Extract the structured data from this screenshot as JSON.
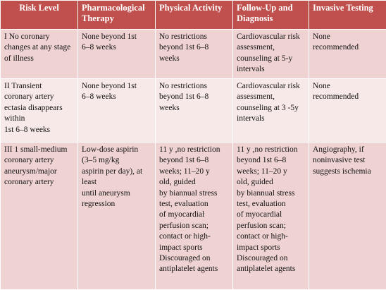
{
  "table": {
    "header": [
      "Risk Level",
      "Pharmacological\nTherapy",
      "Physical Activity",
      "Follow-Up and\nDiagnosis",
      "Invasive Testing"
    ],
    "rows": [
      [
        "I  No coronary\nchanges at any stage\nof illness",
        "None beyond 1st\n6–8 weeks",
        "No restrictions\nbeyond 1st 6–8\nweeks",
        "Cardiovascular risk\nassessment,\ncounseling at 5-y\nintervals",
        "None\nrecommended"
      ],
      [
        "II  Transient\ncoronary artery\nectasia disappears\nwithin\n1st 6–8 weeks",
        "None beyond 1st\n6–8 weeks",
        "No restrictions\nbeyond 1st 6–8\nweeks",
        "Cardiovascular risk\nassessment,\ncounseling at 3 -5y\nintervals",
        "None\nrecommended"
      ],
      [
        "III  1 small-medium\ncoronary artery\naneurysm/major\ncoronary artery",
        "Low-dose aspirin\n(3–5 mg/kg\naspirin per day), at\nleast\nuntil aneurysm\nregression",
        "11 y ,no restriction\nbeyond 1st 6–8\nweeks; 11–20 y\nold,  guided\nby biannual stress\ntest, evaluation\nof myocardial\nperfusion scan;\ncontact or high-\nimpact sports\nDiscouraged  on\nantiplatelet agents",
        "11 y ,no restriction\nbeyond 1st 6–8\nweeks; 11–20 y\nold,  guided\nby biannual stress\ntest, evaluation\nof myocardial\nperfusion scan;\ncontact or high-\nimpact sports\nDiscouraged  on\nantiplatelet agents",
        "Angiography, if\nnoninvasive test\nsuggests ischemia"
      ]
    ]
  }
}
